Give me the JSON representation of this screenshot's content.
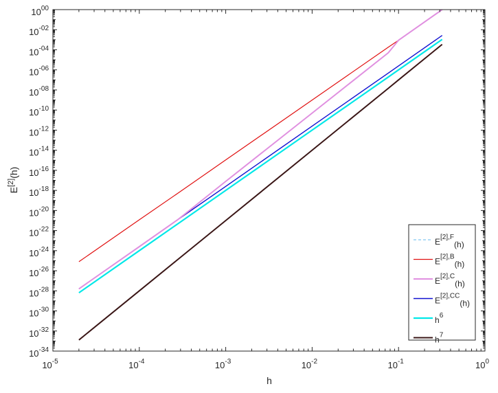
{
  "chart_data": {
    "type": "line",
    "title": "",
    "xlabel": "h",
    "ylabel": "E^[2](h)",
    "ylabel_parts": {
      "base": "E",
      "sup": "[2]",
      "rest": "(h)"
    },
    "xscale": "log",
    "yscale": "log",
    "xlim": [
      1e-05,
      1
    ],
    "ylim": [
      1e-34,
      1
    ],
    "x_ticks": [
      {
        "base": "10",
        "exp": "-5",
        "value": -5
      },
      {
        "base": "10",
        "exp": "-4",
        "value": -4
      },
      {
        "base": "10",
        "exp": "-3",
        "value": -3
      },
      {
        "base": "10",
        "exp": "-2",
        "value": -2
      },
      {
        "base": "10",
        "exp": "-1",
        "value": -1
      },
      {
        "base": "10",
        "exp": "0",
        "value": 0
      }
    ],
    "y_ticks": [
      {
        "base": "10",
        "exp": "00",
        "value": 0
      },
      {
        "base": "10",
        "exp": "-02",
        "value": -2
      },
      {
        "base": "10",
        "exp": "-04",
        "value": -4
      },
      {
        "base": "10",
        "exp": "-06",
        "value": -6
      },
      {
        "base": "10",
        "exp": "-08",
        "value": -8
      },
      {
        "base": "10",
        "exp": "-10",
        "value": -10
      },
      {
        "base": "10",
        "exp": "-12",
        "value": -12
      },
      {
        "base": "10",
        "exp": "-14",
        "value": -14
      },
      {
        "base": "10",
        "exp": "-16",
        "value": -16
      },
      {
        "base": "10",
        "exp": "-18",
        "value": -18
      },
      {
        "base": "10",
        "exp": "-20",
        "value": -20
      },
      {
        "base": "10",
        "exp": "-22",
        "value": -22
      },
      {
        "base": "10",
        "exp": "-24",
        "value": -24
      },
      {
        "base": "10",
        "exp": "-26",
        "value": -26
      },
      {
        "base": "10",
        "exp": "-28",
        "value": -28
      },
      {
        "base": "10",
        "exp": "-30",
        "value": -30
      },
      {
        "base": "10",
        "exp": "-32",
        "value": -32
      },
      {
        "base": "10",
        "exp": "-34",
        "value": -34
      }
    ],
    "grid": false,
    "legend_position": "southeast",
    "x": [
      2e-05,
      0.0001,
      0.00028,
      0.001,
      0.01,
      0.076,
      0.1,
      0.32
    ],
    "series": [
      {
        "name": "E^[2],F(h)",
        "label_parts": {
          "base": "E",
          "sup": "[2],F",
          "sub": "(h)"
        },
        "color": "#80c8f0",
        "dash": "4,3",
        "width": 1.2,
        "log10_values": []
      },
      {
        "name": "E^[2],B(h)",
        "label_parts": {
          "base": "E",
          "sup": "[2],B",
          "sub": "(h)"
        },
        "color": "#e01010",
        "dash": "",
        "width": 1.2,
        "log10_values": [
          -25.1,
          -20.93,
          -18.27,
          -14.97,
          -9.0,
          -3.75,
          -3.05,
          0.0
        ]
      },
      {
        "name": "E^[2],C(h)",
        "label_parts": {
          "base": "E",
          "sup": "[2],C",
          "sub": "(h)"
        },
        "color": "#e090e0",
        "dash": "",
        "width": 2.0,
        "log10_values": [
          -27.8,
          -23.6,
          -20.9,
          -17.1,
          -10.3,
          -4.3,
          -3.05,
          0.0
        ]
      },
      {
        "name": "E^[2],CC(h)",
        "label_parts": {
          "base": "E",
          "sup": "[2],CC",
          "sub": "(h)"
        },
        "color": "#1010d0",
        "dash": "",
        "width": 1.4,
        "log10_values": [
          -27.8,
          -23.6,
          -20.9,
          -17.6,
          -11.6,
          -6.32,
          -5.6,
          -2.57
        ]
      },
      {
        "name": "h^6",
        "label_parts": {
          "base": "h",
          "sup": "6",
          "sub": ""
        },
        "color": "#00e8e8",
        "dash": "",
        "width": 2.2,
        "log10_values": [
          -28.19,
          -24.0,
          -21.32,
          -18.0,
          -12.0,
          -6.72,
          -6.0,
          -2.97
        ]
      },
      {
        "name": "h^7",
        "label_parts": {
          "base": "h",
          "sup": "7",
          "sub": ""
        },
        "color": "#3a1616",
        "dash": "",
        "width": 2.0,
        "log10_values": [
          -32.89,
          -28.0,
          -24.87,
          -21.0,
          -14.0,
          -7.84,
          -7.0,
          -3.46
        ]
      }
    ]
  }
}
